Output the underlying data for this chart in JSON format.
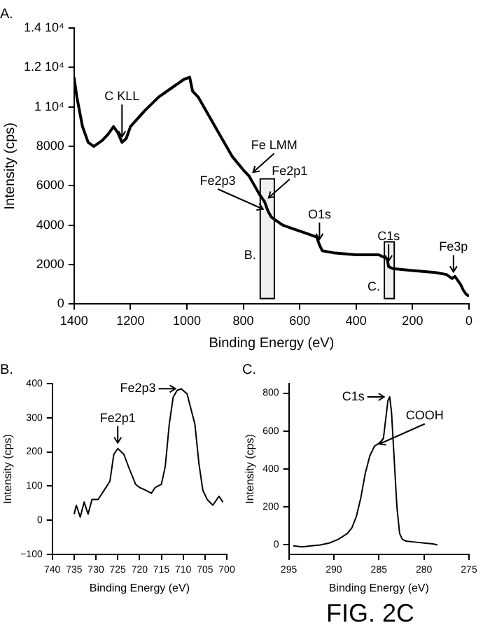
{
  "chart_data": [
    {
      "type": "line",
      "title": "A.",
      "xlabel": "Binding Energy (eV)",
      "ylabel": "Intensity (cps)",
      "x": [
        1400,
        1390,
        1370,
        1350,
        1330,
        1300,
        1280,
        1260,
        1245,
        1230,
        1215,
        1200,
        1150,
        1100,
        1050,
        1010,
        990,
        980,
        960,
        920,
        880,
        840,
        800,
        780,
        760,
        740,
        725,
        712,
        700,
        680,
        660,
        620,
        580,
        540,
        530,
        520,
        480,
        400,
        320,
        290,
        285,
        270,
        200,
        120,
        80,
        60,
        50,
        30,
        20,
        10,
        0
      ],
      "series": [
        {
          "color": "#000000",
          "values": [
            11500,
            10500,
            9000,
            8200,
            8000,
            8300,
            8600,
            9000,
            8700,
            8200,
            8400,
            9000,
            9800,
            10500,
            11000,
            11400,
            11500,
            10800,
            10500,
            9500,
            8500,
            7500,
            6800,
            6500,
            6000,
            5500,
            5200,
            4700,
            4400,
            4200,
            4000,
            3800,
            3600,
            3400,
            3000,
            2700,
            2600,
            2500,
            2500,
            2300,
            1900,
            1800,
            1700,
            1600,
            1500,
            1300,
            1400,
            1000,
            700,
            500,
            400
          ]
        }
      ],
      "xlim": [
        1400,
        0
      ],
      "xticks": [
        1400,
        1200,
        1000,
        800,
        600,
        400,
        200,
        0
      ],
      "ylim": [
        0,
        14000
      ],
      "yticks": [
        0,
        2000,
        4000,
        6000,
        8000,
        {
          "value": 10000,
          "label": "1 10⁴"
        },
        {
          "value": 12000,
          "label": "1.2 10⁴"
        },
        {
          "value": 14000,
          "label": "1.4 10⁴"
        }
      ],
      "annotations": [
        {
          "text": "C KLL",
          "x": 1230,
          "y": 8200
        },
        {
          "text": "Fe LMM",
          "x": 780,
          "y": 6500
        },
        {
          "text": "Fe2p1",
          "x": 725,
          "y": 5200
        },
        {
          "text": "Fe2p3",
          "x": 712,
          "y": 4700
        },
        {
          "text": "O1s",
          "x": 530,
          "y": 3000
        },
        {
          "text": "C1s",
          "x": 285,
          "y": 1900
        },
        {
          "text": "Fe3p",
          "x": 55,
          "y": 1350
        }
      ],
      "bands": [
        {
          "axis": "x",
          "from": 740,
          "to": 690,
          "label": "B."
        },
        {
          "axis": "x",
          "from": 300,
          "to": 265,
          "label": "C."
        }
      ],
      "grid": false,
      "legend": false
    },
    {
      "type": "line",
      "title": "B.",
      "xlabel": "Binding Energy (eV)",
      "ylabel": "Intensity (cps)",
      "x": [
        735,
        734.5,
        733.6,
        732.7,
        731.8,
        730.9,
        729.5,
        727.7,
        726.8,
        725.9,
        725,
        723.6,
        722.3,
        720.9,
        720,
        718.6,
        717.3,
        716.4,
        715,
        714.1,
        713.2,
        712.3,
        711.4,
        710.5,
        709.1,
        707.3,
        706.4,
        705.5,
        704.5,
        703.2,
        701.8,
        700.9
      ],
      "series": [
        {
          "color": "#000000",
          "values": [
            18,
            44,
            9,
            53,
            18,
            61,
            61,
            96,
            114,
            193,
            210,
            193,
            149,
            105,
            96,
            88,
            79,
            96,
            105,
            158,
            280,
            360,
            380,
            385,
            370,
            280,
            167,
            88,
            61,
            44,
            70,
            53
          ]
        }
      ],
      "xlim": [
        740,
        700
      ],
      "xticks": [
        740,
        735,
        730,
        725,
        720,
        715,
        710,
        705,
        700
      ],
      "ylim": [
        -100,
        400
      ],
      "yticks": [
        {
          "value": -100,
          "label": "−100"
        },
        0,
        100,
        200,
        300,
        400
      ],
      "annotations": [
        {
          "text": "Fe2p3",
          "x": 710.5,
          "y": 385
        },
        {
          "text": "Fe2p1",
          "x": 725,
          "y": 210
        }
      ],
      "grid": false,
      "legend": false
    },
    {
      "type": "line",
      "title": "C.",
      "xlabel": "Binding Energy (eV)",
      "ylabel": "Intensity (cps)",
      "x": [
        294.5,
        293.5,
        292.5,
        291.5,
        290.5,
        289.5,
        288.5,
        288,
        287.5,
        287,
        286.5,
        286,
        285.5,
        285,
        284.5,
        284.3,
        284,
        283.8,
        283.6,
        283.3,
        283,
        282.7,
        282.4,
        282,
        281,
        280,
        279,
        278.5
      ],
      "series": [
        {
          "color": "#000000",
          "values": [
            -5,
            -10,
            -5,
            0,
            10,
            30,
            60,
            90,
            150,
            250,
            380,
            470,
            520,
            535,
            560,
            640,
            760,
            780,
            700,
            450,
            200,
            60,
            30,
            20,
            15,
            10,
            5,
            0
          ]
        }
      ],
      "xlim": [
        295,
        275
      ],
      "xticks": [
        295,
        290,
        285,
        280,
        275
      ],
      "ylim": [
        -50,
        850
      ],
      "yticks": [
        0,
        200,
        400,
        600,
        800
      ],
      "annotations": [
        {
          "text": "C1s",
          "x": 283.8,
          "y": 780
        },
        {
          "text": "COOH",
          "x": 285.5,
          "y": 520
        },
        "FIG. 2C"
      ],
      "grid": false,
      "legend": false
    }
  ]
}
